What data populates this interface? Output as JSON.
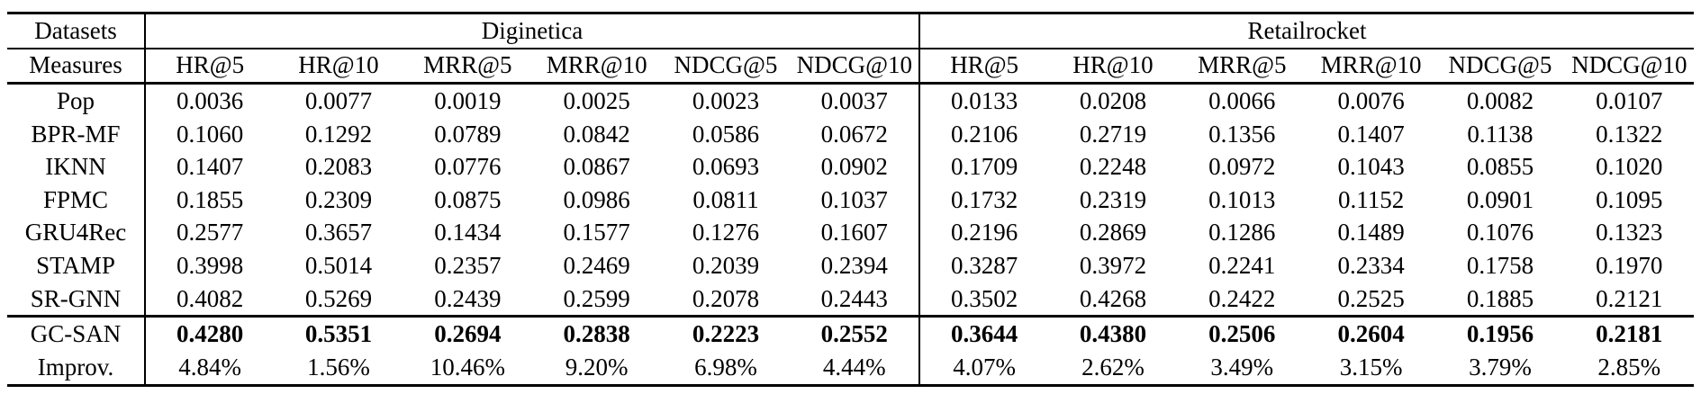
{
  "chart_data": {
    "type": "table",
    "corner": {
      "datasets_label": "Datasets",
      "measures_label": "Measures"
    },
    "groups": [
      {
        "key": "diginetica",
        "label": "Diginetica",
        "measures": [
          "HR@5",
          "HR@10",
          "MRR@5",
          "MRR@10",
          "NDCG@5",
          "NDCG@10"
        ]
      },
      {
        "key": "retailrocket",
        "label": "Retailrocket",
        "measures": [
          "HR@5",
          "HR@10",
          "MRR@5",
          "MRR@10",
          "NDCG@5",
          "NDCG@10"
        ]
      }
    ],
    "rows": [
      {
        "label": "Pop",
        "bold_values": false,
        "divider_above": false,
        "diginetica": [
          "0.0036",
          "0.0077",
          "0.0019",
          "0.0025",
          "0.0023",
          "0.0037"
        ],
        "retailrocket": [
          "0.0133",
          "0.0208",
          "0.0066",
          "0.0076",
          "0.0082",
          "0.0107"
        ]
      },
      {
        "label": "BPR-MF",
        "bold_values": false,
        "divider_above": false,
        "diginetica": [
          "0.1060",
          "0.1292",
          "0.0789",
          "0.0842",
          "0.0586",
          "0.0672"
        ],
        "retailrocket": [
          "0.2106",
          "0.2719",
          "0.1356",
          "0.1407",
          "0.1138",
          "0.1322"
        ]
      },
      {
        "label": "IKNN",
        "bold_values": false,
        "divider_above": false,
        "diginetica": [
          "0.1407",
          "0.2083",
          "0.0776",
          "0.0867",
          "0.0693",
          "0.0902"
        ],
        "retailrocket": [
          "0.1709",
          "0.2248",
          "0.0972",
          "0.1043",
          "0.0855",
          "0.1020"
        ]
      },
      {
        "label": "FPMC",
        "bold_values": false,
        "divider_above": false,
        "diginetica": [
          "0.1855",
          "0.2309",
          "0.0875",
          "0.0986",
          "0.0811",
          "0.1037"
        ],
        "retailrocket": [
          "0.1732",
          "0.2319",
          "0.1013",
          "0.1152",
          "0.0901",
          "0.1095"
        ]
      },
      {
        "label": "GRU4Rec",
        "bold_values": false,
        "divider_above": false,
        "diginetica": [
          "0.2577",
          "0.3657",
          "0.1434",
          "0.1577",
          "0.1276",
          "0.1607"
        ],
        "retailrocket": [
          "0.2196",
          "0.2869",
          "0.1286",
          "0.1489",
          "0.1076",
          "0.1323"
        ]
      },
      {
        "label": "STAMP",
        "bold_values": false,
        "divider_above": false,
        "diginetica": [
          "0.3998",
          "0.5014",
          "0.2357",
          "0.2469",
          "0.2039",
          "0.2394"
        ],
        "retailrocket": [
          "0.3287",
          "0.3972",
          "0.2241",
          "0.2334",
          "0.1758",
          "0.1970"
        ]
      },
      {
        "label": "SR-GNN",
        "bold_values": false,
        "divider_above": false,
        "diginetica": [
          "0.4082",
          "0.5269",
          "0.2439",
          "0.2599",
          "0.2078",
          "0.2443"
        ],
        "retailrocket": [
          "0.3502",
          "0.4268",
          "0.2422",
          "0.2525",
          "0.1885",
          "0.2121"
        ]
      },
      {
        "label": "GC-SAN",
        "bold_values": true,
        "divider_above": true,
        "diginetica": [
          "0.4280",
          "0.5351",
          "0.2694",
          "0.2838",
          "0.2223",
          "0.2552"
        ],
        "retailrocket": [
          "0.3644",
          "0.4380",
          "0.2506",
          "0.2604",
          "0.1956",
          "0.2181"
        ]
      },
      {
        "label": "Improv.",
        "bold_values": false,
        "divider_above": false,
        "diginetica": [
          "4.84%",
          "1.56%",
          "10.46%",
          "9.20%",
          "6.98%",
          "4.44%"
        ],
        "retailrocket": [
          "4.07%",
          "2.62%",
          "3.49%",
          "3.15%",
          "3.79%",
          "2.85%"
        ]
      }
    ]
  }
}
